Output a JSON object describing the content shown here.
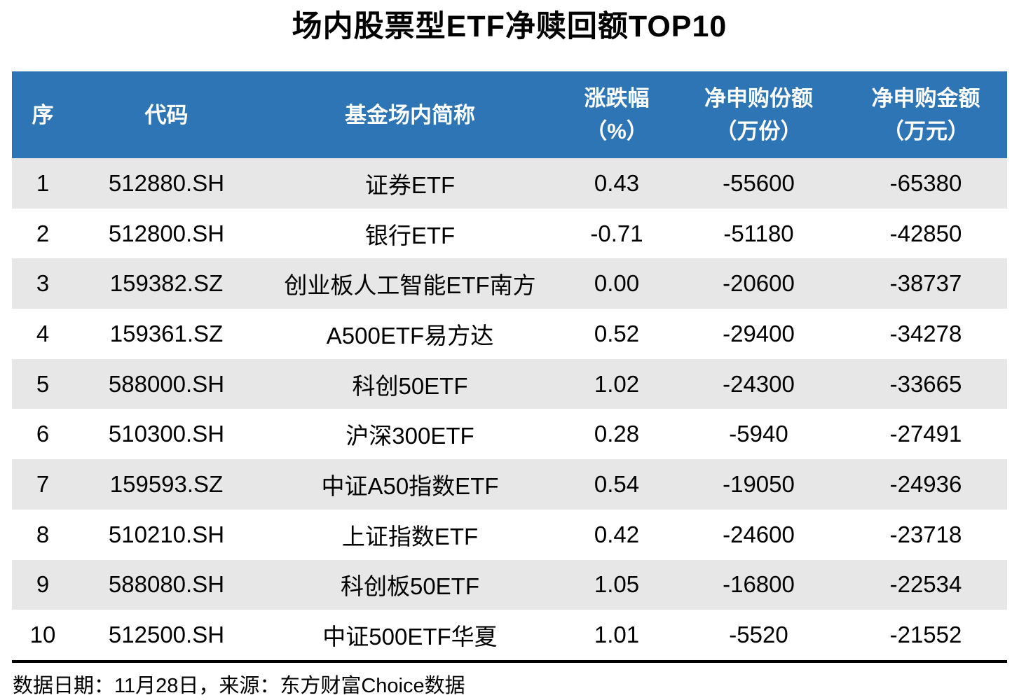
{
  "title": "场内股票型ETF净赎回额TOP10",
  "footer": {
    "text": "数据日期：11月28日，来源：东方财富Choice数据"
  },
  "colors": {
    "header_bg": "#2E75B6",
    "header_text": "#FFFFFF",
    "row_alt_bg": "#E7E7E7",
    "row_bg": "#FFFFFF",
    "divider": "#000000"
  },
  "header": {
    "cells": [
      {
        "line1": "序",
        "line2": ""
      },
      {
        "line1": "代码",
        "line2": ""
      },
      {
        "line1": "基金场内简称",
        "line2": ""
      },
      {
        "line1": "涨跌幅",
        "line2": "（%）"
      },
      {
        "line1": "净申购份额",
        "line2": "（万份）"
      },
      {
        "line1": "净申购金额",
        "line2": "（万元）"
      }
    ]
  },
  "rows": [
    {
      "idx": "1",
      "code": "512880.SH",
      "name": "证券ETF",
      "chg": "0.43",
      "shares": "-55600",
      "amount": "-65380"
    },
    {
      "idx": "2",
      "code": "512800.SH",
      "name": "银行ETF",
      "chg": "-0.71",
      "shares": "-51180",
      "amount": "-42850"
    },
    {
      "idx": "3",
      "code": "159382.SZ",
      "name": "创业板人工智能ETF南方",
      "chg": "0.00",
      "shares": "-20600",
      "amount": "-38737"
    },
    {
      "idx": "4",
      "code": "159361.SZ",
      "name": "A500ETF易方达",
      "chg": "0.52",
      "shares": "-29400",
      "amount": "-34278"
    },
    {
      "idx": "5",
      "code": "588000.SH",
      "name": "科创50ETF",
      "chg": "1.02",
      "shares": "-24300",
      "amount": "-33665"
    },
    {
      "idx": "6",
      "code": "510300.SH",
      "name": "沪深300ETF",
      "chg": "0.28",
      "shares": "-5940",
      "amount": "-27491"
    },
    {
      "idx": "7",
      "code": "159593.SZ",
      "name": "中证A50指数ETF",
      "chg": "0.54",
      "shares": "-19050",
      "amount": "-24936"
    },
    {
      "idx": "8",
      "code": "510210.SH",
      "name": "上证指数ETF",
      "chg": "0.42",
      "shares": "-24600",
      "amount": "-23718"
    },
    {
      "idx": "9",
      "code": "588080.SH",
      "name": "科创板50ETF",
      "chg": "1.05",
      "shares": "-16800",
      "amount": "-22534"
    },
    {
      "idx": "10",
      "code": "512500.SH",
      "name": "中证500ETF华夏",
      "chg": "1.01",
      "shares": "-5520",
      "amount": "-21552"
    }
  ],
  "chart_data": {
    "type": "table",
    "title": "场内股票型ETF净赎回额TOP10",
    "columns": [
      "序",
      "代码",
      "基金场内简称",
      "涨跌幅（%）",
      "净申购份额（万份）",
      "净申购金额（万元）"
    ],
    "rows": [
      [
        1,
        "512880.SH",
        "证券ETF",
        0.43,
        -55600,
        -65380
      ],
      [
        2,
        "512800.SH",
        "银行ETF",
        -0.71,
        -51180,
        -42850
      ],
      [
        3,
        "159382.SZ",
        "创业板人工智能ETF南方",
        0.0,
        -20600,
        -38737
      ],
      [
        4,
        "159361.SZ",
        "A500ETF易方达",
        0.52,
        -29400,
        -34278
      ],
      [
        5,
        "588000.SH",
        "科创50ETF",
        1.02,
        -24300,
        -33665
      ],
      [
        6,
        "510300.SH",
        "沪深300ETF",
        0.28,
        -5940,
        -27491
      ],
      [
        7,
        "159593.SZ",
        "中证A50指数ETF",
        0.54,
        -19050,
        -24936
      ],
      [
        8,
        "510210.SH",
        "上证指数ETF",
        0.42,
        -24600,
        -23718
      ],
      [
        9,
        "588080.SH",
        "科创板50ETF",
        1.05,
        -16800,
        -22534
      ],
      [
        10,
        "512500.SH",
        "中证500ETF华夏",
        1.01,
        -5520,
        -21552
      ]
    ],
    "footnote": "数据日期：11月28日，来源：东方财富Choice数据",
    "layout": {
      "striped_rows": true,
      "header_style": "blue-banner",
      "value_alignment": "center"
    }
  }
}
